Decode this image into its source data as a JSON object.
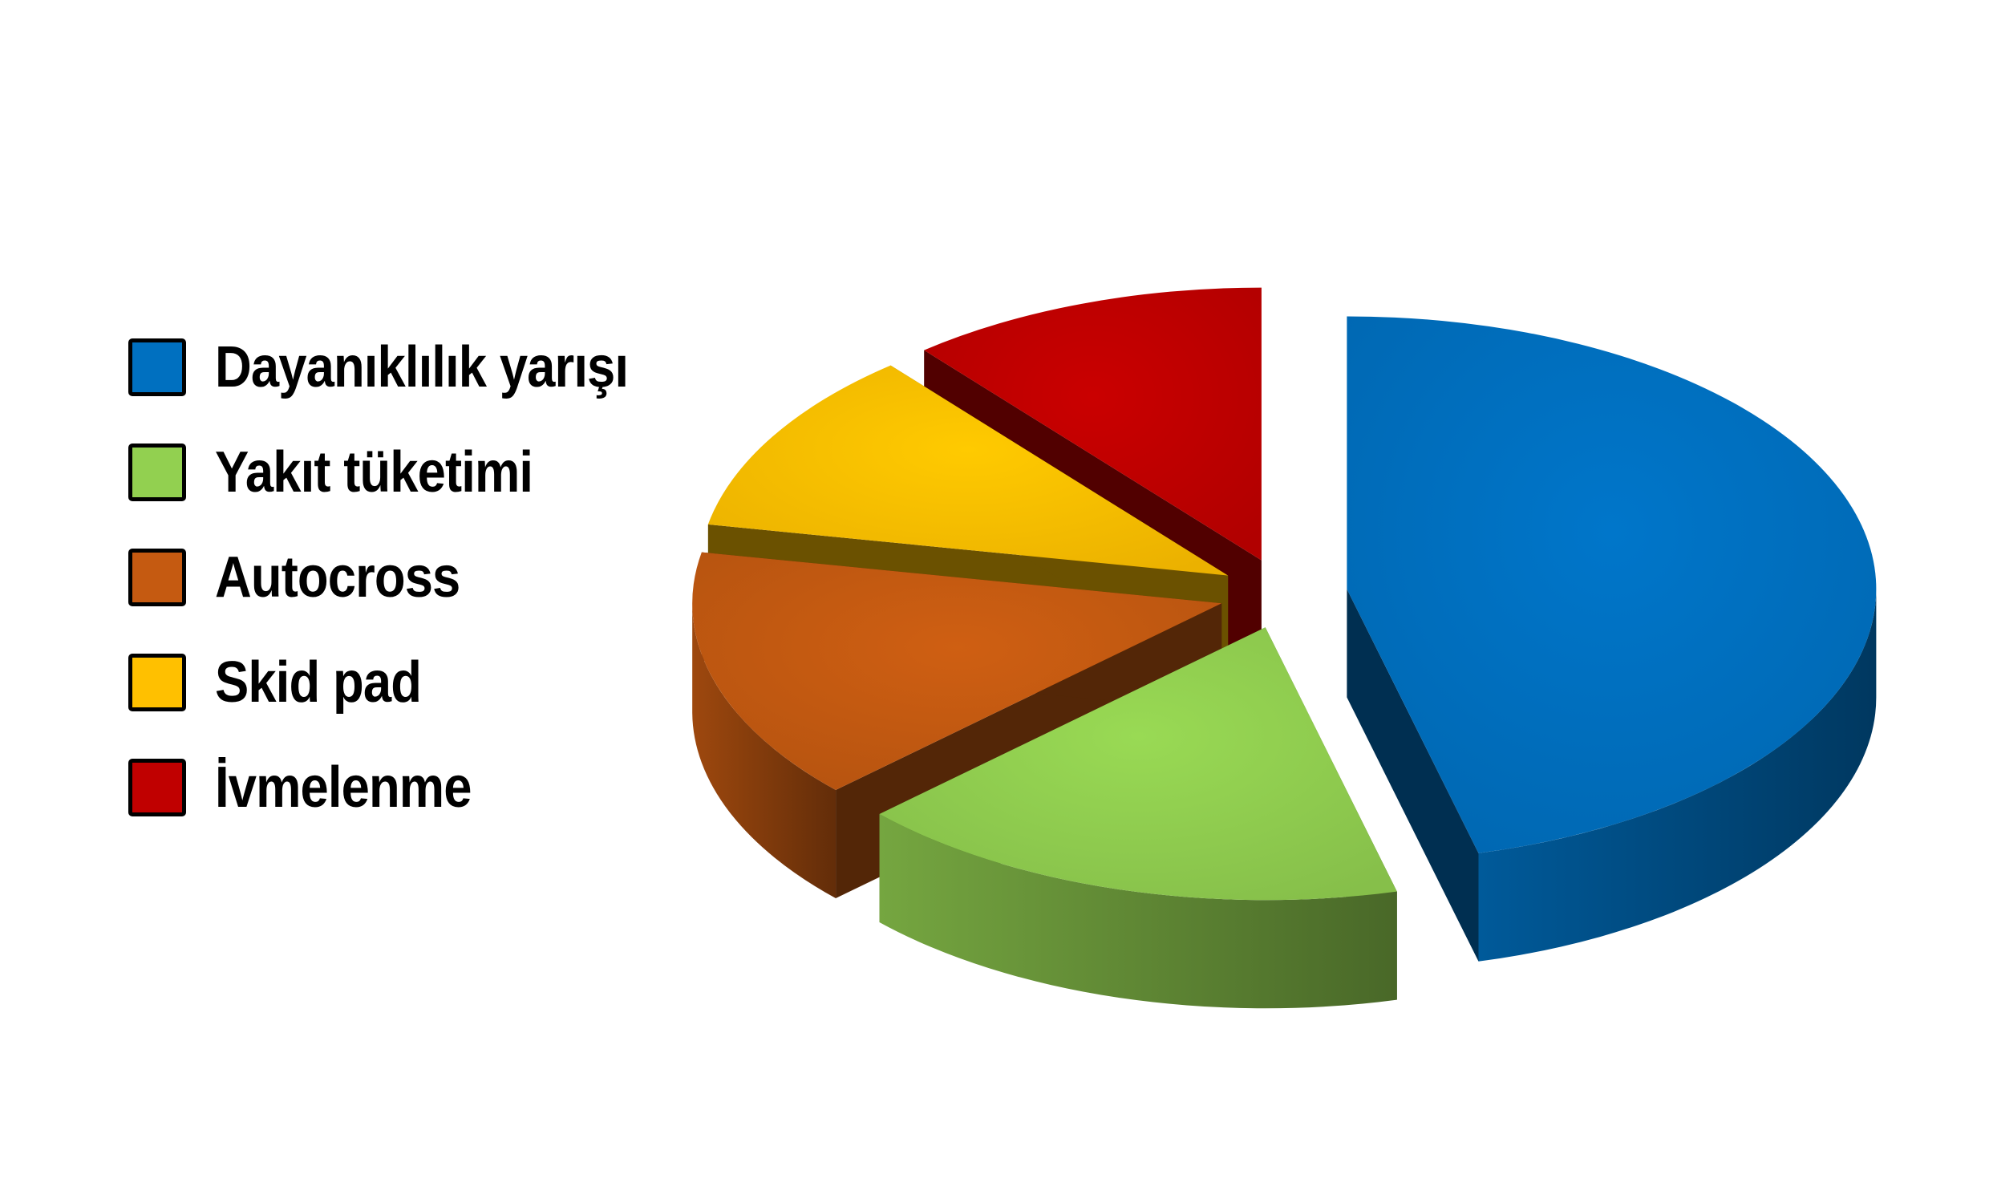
{
  "chart_data": {
    "type": "pie",
    "title": "",
    "legend_position": "left",
    "exploded": true,
    "three_d": true,
    "slices": [
      {
        "label": "Dayanıklılık yarışı",
        "value": 46,
        "color": "#0070c0"
      },
      {
        "label": "Yakıt tüketimi",
        "value": 17,
        "color": "#92d050"
      },
      {
        "label": "Autocross",
        "value": 15,
        "color": "#c55a11"
      },
      {
        "label": "Skid pad",
        "value": 11,
        "color": "#ffc000"
      },
      {
        "label": "İvmelenme",
        "value": 11,
        "color": "#c00000"
      }
    ]
  }
}
